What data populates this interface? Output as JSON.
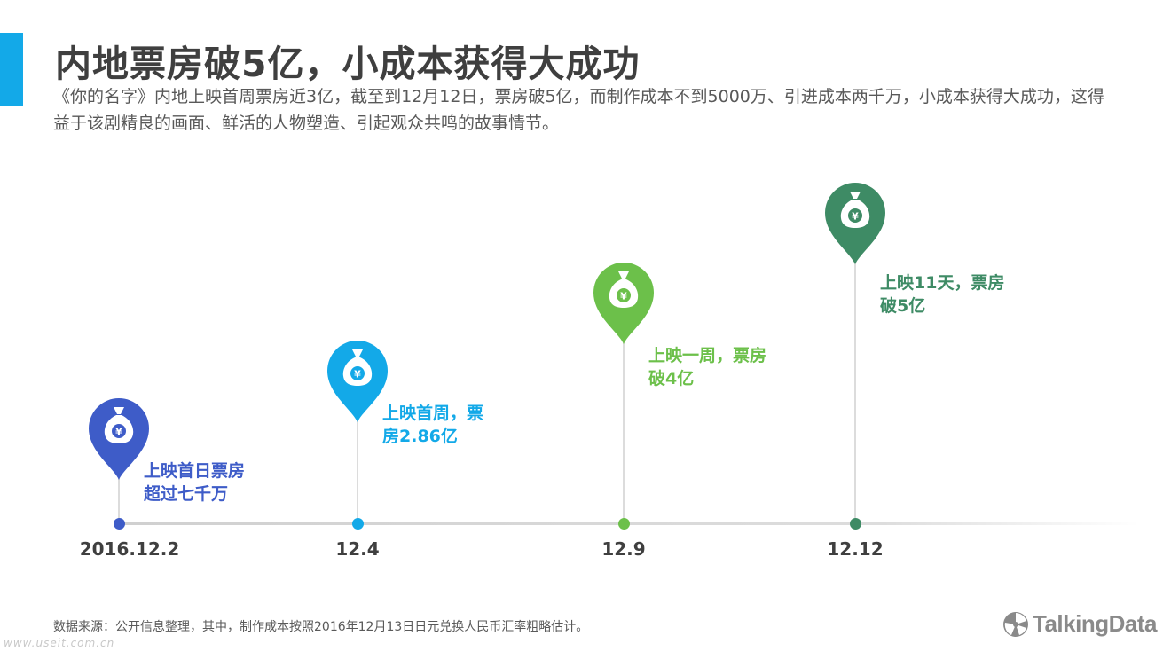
{
  "header": {
    "title": "内地票房破5亿，小成本获得大成功",
    "subtitle": "《你的名字》内地上映首周票房近3亿，截至到12月12日，票房破5亿，而制作成本不到5000万、引进成本两千万，小成本获得大成功，这得益于该剧精良的画面、鲜活的人物塑造、引起观众共鸣的故事情节。"
  },
  "chart_data": {
    "type": "timeline",
    "events": [
      {
        "date": "2016.12.2",
        "label_line1": "上映首日票房",
        "label_line2": "超过七千万",
        "color": "#3e5cc8",
        "icon": "money-bag-icon"
      },
      {
        "date": "12.4",
        "label_line1": "上映首周，票",
        "label_line2": "房2.86亿",
        "color": "#13a9e8",
        "icon": "money-bag-icon"
      },
      {
        "date": "12.9",
        "label_line1": "上映一周，票房",
        "label_line2": "破4亿",
        "color": "#6cc04a",
        "icon": "money-bag-icon"
      },
      {
        "date": "12.12",
        "label_line1": "上映11天，票房",
        "label_line2": "破5亿",
        "color": "#3e8b65",
        "icon": "money-bag-icon"
      }
    ]
  },
  "footer": {
    "source": "数据来源：公开信息整理，其中，制作成本按照2016年12月13日日元兑换人民币汇率粗略估计。",
    "watermark": "www.useit.com.cn",
    "logo_text": "TalkingData"
  }
}
